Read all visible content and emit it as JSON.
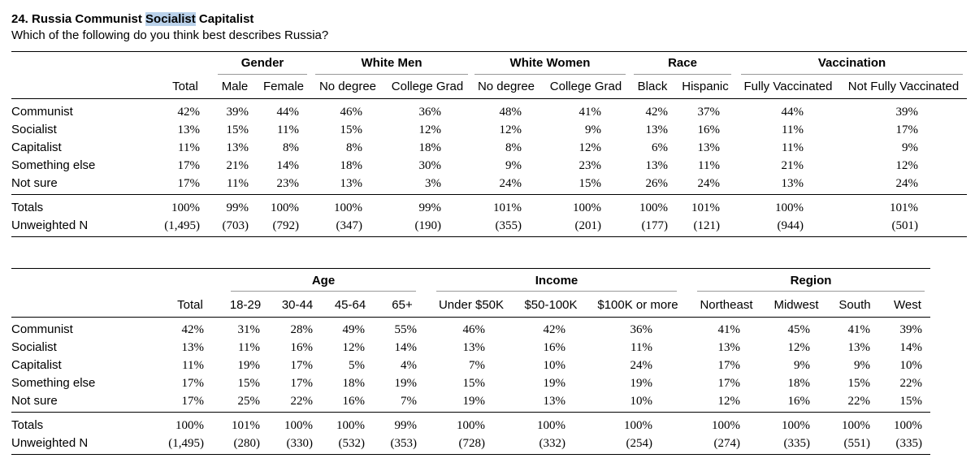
{
  "question": {
    "title_prefix": "24. Russia Communist ",
    "title_highlight": "Socialist",
    "title_suffix": " Capitalist",
    "subtitle": "Which of the following do you think best describes Russia?"
  },
  "colors": {
    "highlight": "#b9d1ea",
    "rule": "#000000",
    "subrule": "#999999"
  },
  "table1": {
    "groups": [
      "Gender",
      "White Men",
      "White Women",
      "Race",
      "Vaccination"
    ],
    "columns": [
      "Total",
      "Male",
      "Female",
      "No degree",
      "College Grad",
      "No degree",
      "College Grad",
      "Black",
      "Hispanic",
      "Fully Vaccinated",
      "Not Fully Vaccinated"
    ],
    "rows": [
      {
        "label": "Communist",
        "values": [
          "42%",
          "39%",
          "44%",
          "46%",
          "36%",
          "48%",
          "41%",
          "42%",
          "37%",
          "44%",
          "39%"
        ]
      },
      {
        "label": "Socialist",
        "values": [
          "13%",
          "15%",
          "11%",
          "15%",
          "12%",
          "12%",
          "9%",
          "13%",
          "16%",
          "11%",
          "17%"
        ]
      },
      {
        "label": "Capitalist",
        "values": [
          "11%",
          "13%",
          "8%",
          "8%",
          "18%",
          "8%",
          "12%",
          "6%",
          "13%",
          "11%",
          "9%"
        ]
      },
      {
        "label": "Something else",
        "values": [
          "17%",
          "21%",
          "14%",
          "18%",
          "30%",
          "9%",
          "23%",
          "13%",
          "11%",
          "21%",
          "12%"
        ]
      },
      {
        "label": "Not sure",
        "values": [
          "17%",
          "11%",
          "23%",
          "13%",
          "3%",
          "24%",
          "15%",
          "26%",
          "24%",
          "13%",
          "24%"
        ]
      }
    ],
    "totals": {
      "label": "Totals",
      "values": [
        "100%",
        "99%",
        "100%",
        "100%",
        "99%",
        "101%",
        "100%",
        "100%",
        "101%",
        "100%",
        "101%"
      ]
    },
    "unweighted": {
      "label": "Unweighted N",
      "values": [
        "(1,495)",
        "(703)",
        "(792)",
        "(347)",
        "(190)",
        "(355)",
        "(201)",
        "(177)",
        "(121)",
        "(944)",
        "(501)"
      ]
    }
  },
  "table2": {
    "groups": [
      "Age",
      "Income",
      "Region"
    ],
    "columns": [
      "Total",
      "18-29",
      "30-44",
      "45-64",
      "65+",
      "Under $50K",
      "$50-100K",
      "$100K or more",
      "Northeast",
      "Midwest",
      "South",
      "West"
    ],
    "rows": [
      {
        "label": "Communist",
        "values": [
          "42%",
          "31%",
          "28%",
          "49%",
          "55%",
          "46%",
          "42%",
          "36%",
          "41%",
          "45%",
          "41%",
          "39%"
        ]
      },
      {
        "label": "Socialist",
        "values": [
          "13%",
          "11%",
          "16%",
          "12%",
          "14%",
          "13%",
          "16%",
          "11%",
          "13%",
          "12%",
          "13%",
          "14%"
        ]
      },
      {
        "label": "Capitalist",
        "values": [
          "11%",
          "19%",
          "17%",
          "5%",
          "4%",
          "7%",
          "10%",
          "24%",
          "17%",
          "9%",
          "9%",
          "10%"
        ]
      },
      {
        "label": "Something else",
        "values": [
          "17%",
          "15%",
          "17%",
          "18%",
          "19%",
          "15%",
          "19%",
          "19%",
          "17%",
          "18%",
          "15%",
          "22%"
        ]
      },
      {
        "label": "Not sure",
        "values": [
          "17%",
          "25%",
          "22%",
          "16%",
          "7%",
          "19%",
          "13%",
          "10%",
          "12%",
          "16%",
          "22%",
          "15%"
        ]
      }
    ],
    "totals": {
      "label": "Totals",
      "values": [
        "100%",
        "101%",
        "100%",
        "100%",
        "99%",
        "100%",
        "100%",
        "100%",
        "100%",
        "100%",
        "100%",
        "100%"
      ]
    },
    "unweighted": {
      "label": "Unweighted N",
      "values": [
        "(1,495)",
        "(280)",
        "(330)",
        "(532)",
        "(353)",
        "(728)",
        "(332)",
        "(254)",
        "(274)",
        "(335)",
        "(551)",
        "(335)"
      ]
    }
  }
}
